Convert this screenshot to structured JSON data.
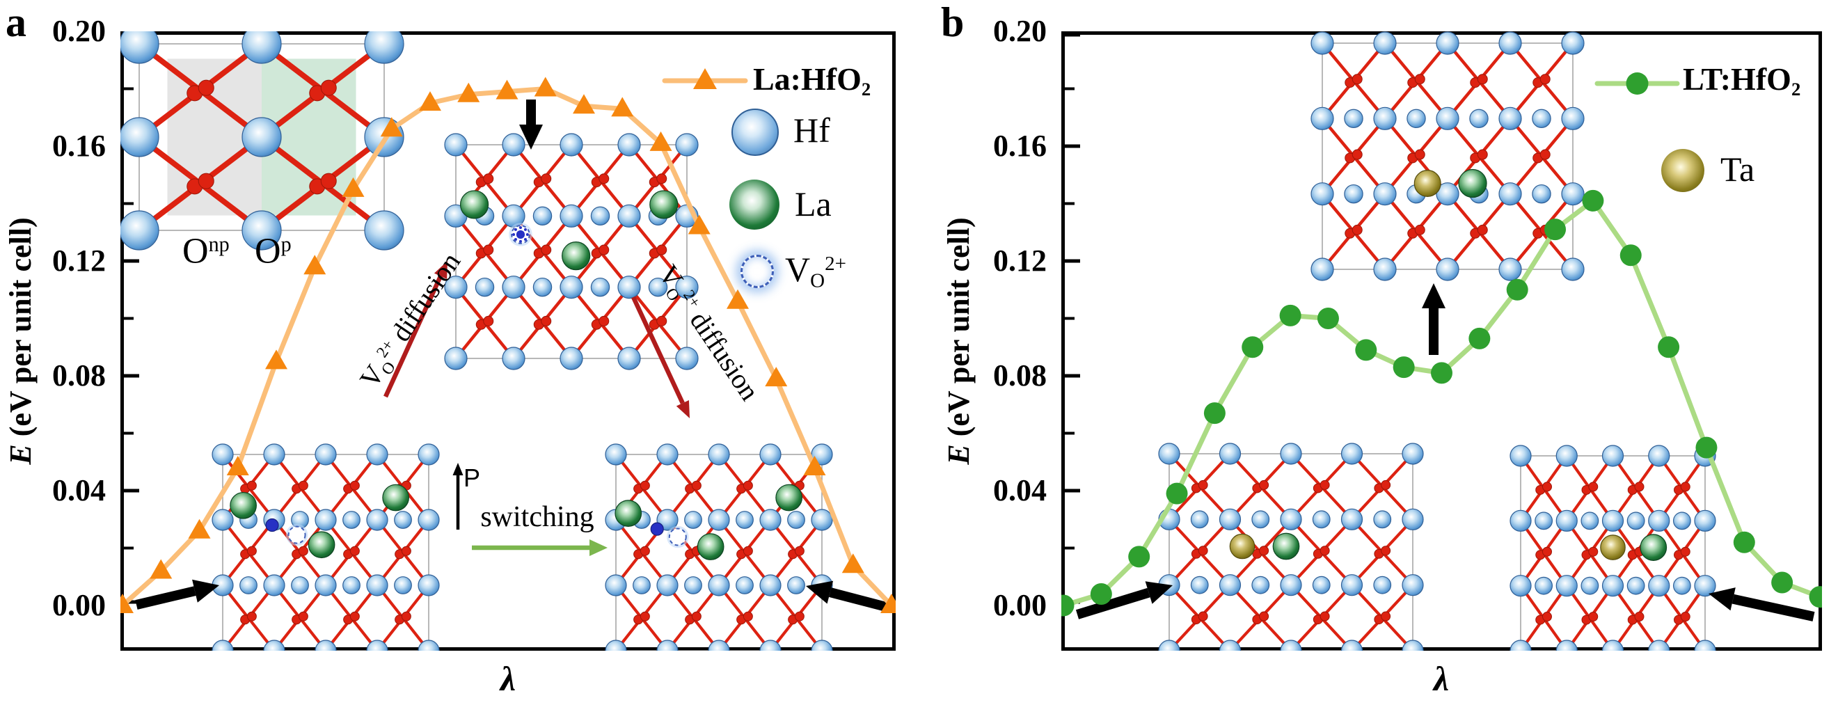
{
  "panel_a": {
    "label": "a",
    "y_axis": {
      "title_em": "E",
      "title_rest": " (eV per unit cell)",
      "tick_labels": [
        "0.20",
        "0.16",
        "0.12",
        "0.08",
        "0.04",
        "0.00"
      ]
    },
    "x_axis": {
      "label": "λ"
    },
    "legend": {
      "series_base": "La:HfO",
      "series_sub": "2",
      "hf": "Hf",
      "la": "La",
      "vo_base": "V",
      "vo_sub": "O",
      "vo_sup": "2+"
    },
    "annotations": {
      "o_np_base": "O",
      "o_np_sup": "np",
      "o_p_base": "O",
      "o_p_sup": "p",
      "diffusion_base": "V",
      "diffusion_sub": "O",
      "diffusion_sup": "2+",
      "diffusion_rest": " diffusion",
      "switching": "switching",
      "polarization": "P"
    }
  },
  "panel_b": {
    "label": "b",
    "y_axis": {
      "title_em": "E",
      "title_rest": " (eV per unit cell)",
      "tick_labels": [
        "0.20",
        "0.16",
        "0.12",
        "0.08",
        "0.04",
        "0.00"
      ]
    },
    "x_axis": {
      "label": "λ"
    },
    "legend": {
      "series_base": "LT:HfO",
      "series_sub": "2",
      "ta": "Ta"
    }
  },
  "chart_data": [
    {
      "type": "line",
      "title": "Polarization switching energy path via oxygen-vacancy diffusion in La-doped HfO2",
      "xlabel": "λ",
      "ylabel": "E (eV per unit cell)",
      "ylim": [
        0.0,
        0.2
      ],
      "yticks": [
        0.0,
        0.04,
        0.08,
        0.12,
        0.16,
        0.2
      ],
      "grid": false,
      "legend_position": "top-right",
      "x": [
        0.0,
        0.05,
        0.1,
        0.15,
        0.2,
        0.25,
        0.3,
        0.35,
        0.4,
        0.45,
        0.5,
        0.55,
        0.6,
        0.65,
        0.7,
        0.75,
        0.8,
        0.85,
        0.9,
        0.95,
        1.0
      ],
      "series": [
        {
          "name": "La:HfO2",
          "marker": "triangle",
          "line_color": "#FBBE78",
          "marker_color": "#F6870F",
          "values": [
            0.0,
            0.012,
            0.026,
            0.048,
            0.085,
            0.118,
            0.145,
            0.166,
            0.175,
            0.178,
            0.179,
            0.18,
            0.174,
            0.173,
            0.161,
            0.132,
            0.106,
            0.079,
            0.048,
            0.014,
            0.0
          ]
        }
      ]
    },
    {
      "type": "line",
      "title": "Polarization switching energy path in La/Ta co-doped HfO2",
      "xlabel": "λ",
      "ylabel": "E (eV per unit cell)",
      "ylim": [
        0.0,
        0.2
      ],
      "yticks": [
        0.0,
        0.04,
        0.08,
        0.12,
        0.16,
        0.2
      ],
      "grid": false,
      "legend_position": "top-right",
      "x": [
        0.0,
        0.05,
        0.1,
        0.15,
        0.2,
        0.25,
        0.3,
        0.35,
        0.4,
        0.45,
        0.5,
        0.55,
        0.6,
        0.65,
        0.7,
        0.75,
        0.8,
        0.85,
        0.9,
        0.95,
        1.0
      ],
      "series": [
        {
          "name": "LT:HfO2",
          "marker": "circle",
          "line_color": "#ABDB84",
          "marker_color": "#2FA02F",
          "values": [
            0.0,
            0.004,
            0.017,
            0.039,
            0.067,
            0.09,
            0.101,
            0.1,
            0.089,
            0.083,
            0.081,
            0.093,
            0.11,
            0.131,
            0.141,
            0.122,
            0.09,
            0.055,
            0.022,
            0.008,
            0.003
          ]
        }
      ]
    }
  ],
  "colors": {
    "panel_a_line": "#FBBE78",
    "panel_a_marker": "#F6870F",
    "panel_b_line": "#ABDB84",
    "panel_b_marker": "#2FA02F",
    "hf_atom": "#5B9BD5",
    "la_atom": "#1E7A38",
    "ta_atom": "#857A1C",
    "o_atom": "#DD2211",
    "vacancy_ring": "#3E5FB8",
    "diffusion_arrow": "#B01C1C",
    "switching_arrow": "#7CB64E",
    "arrow_black": "#000000"
  }
}
